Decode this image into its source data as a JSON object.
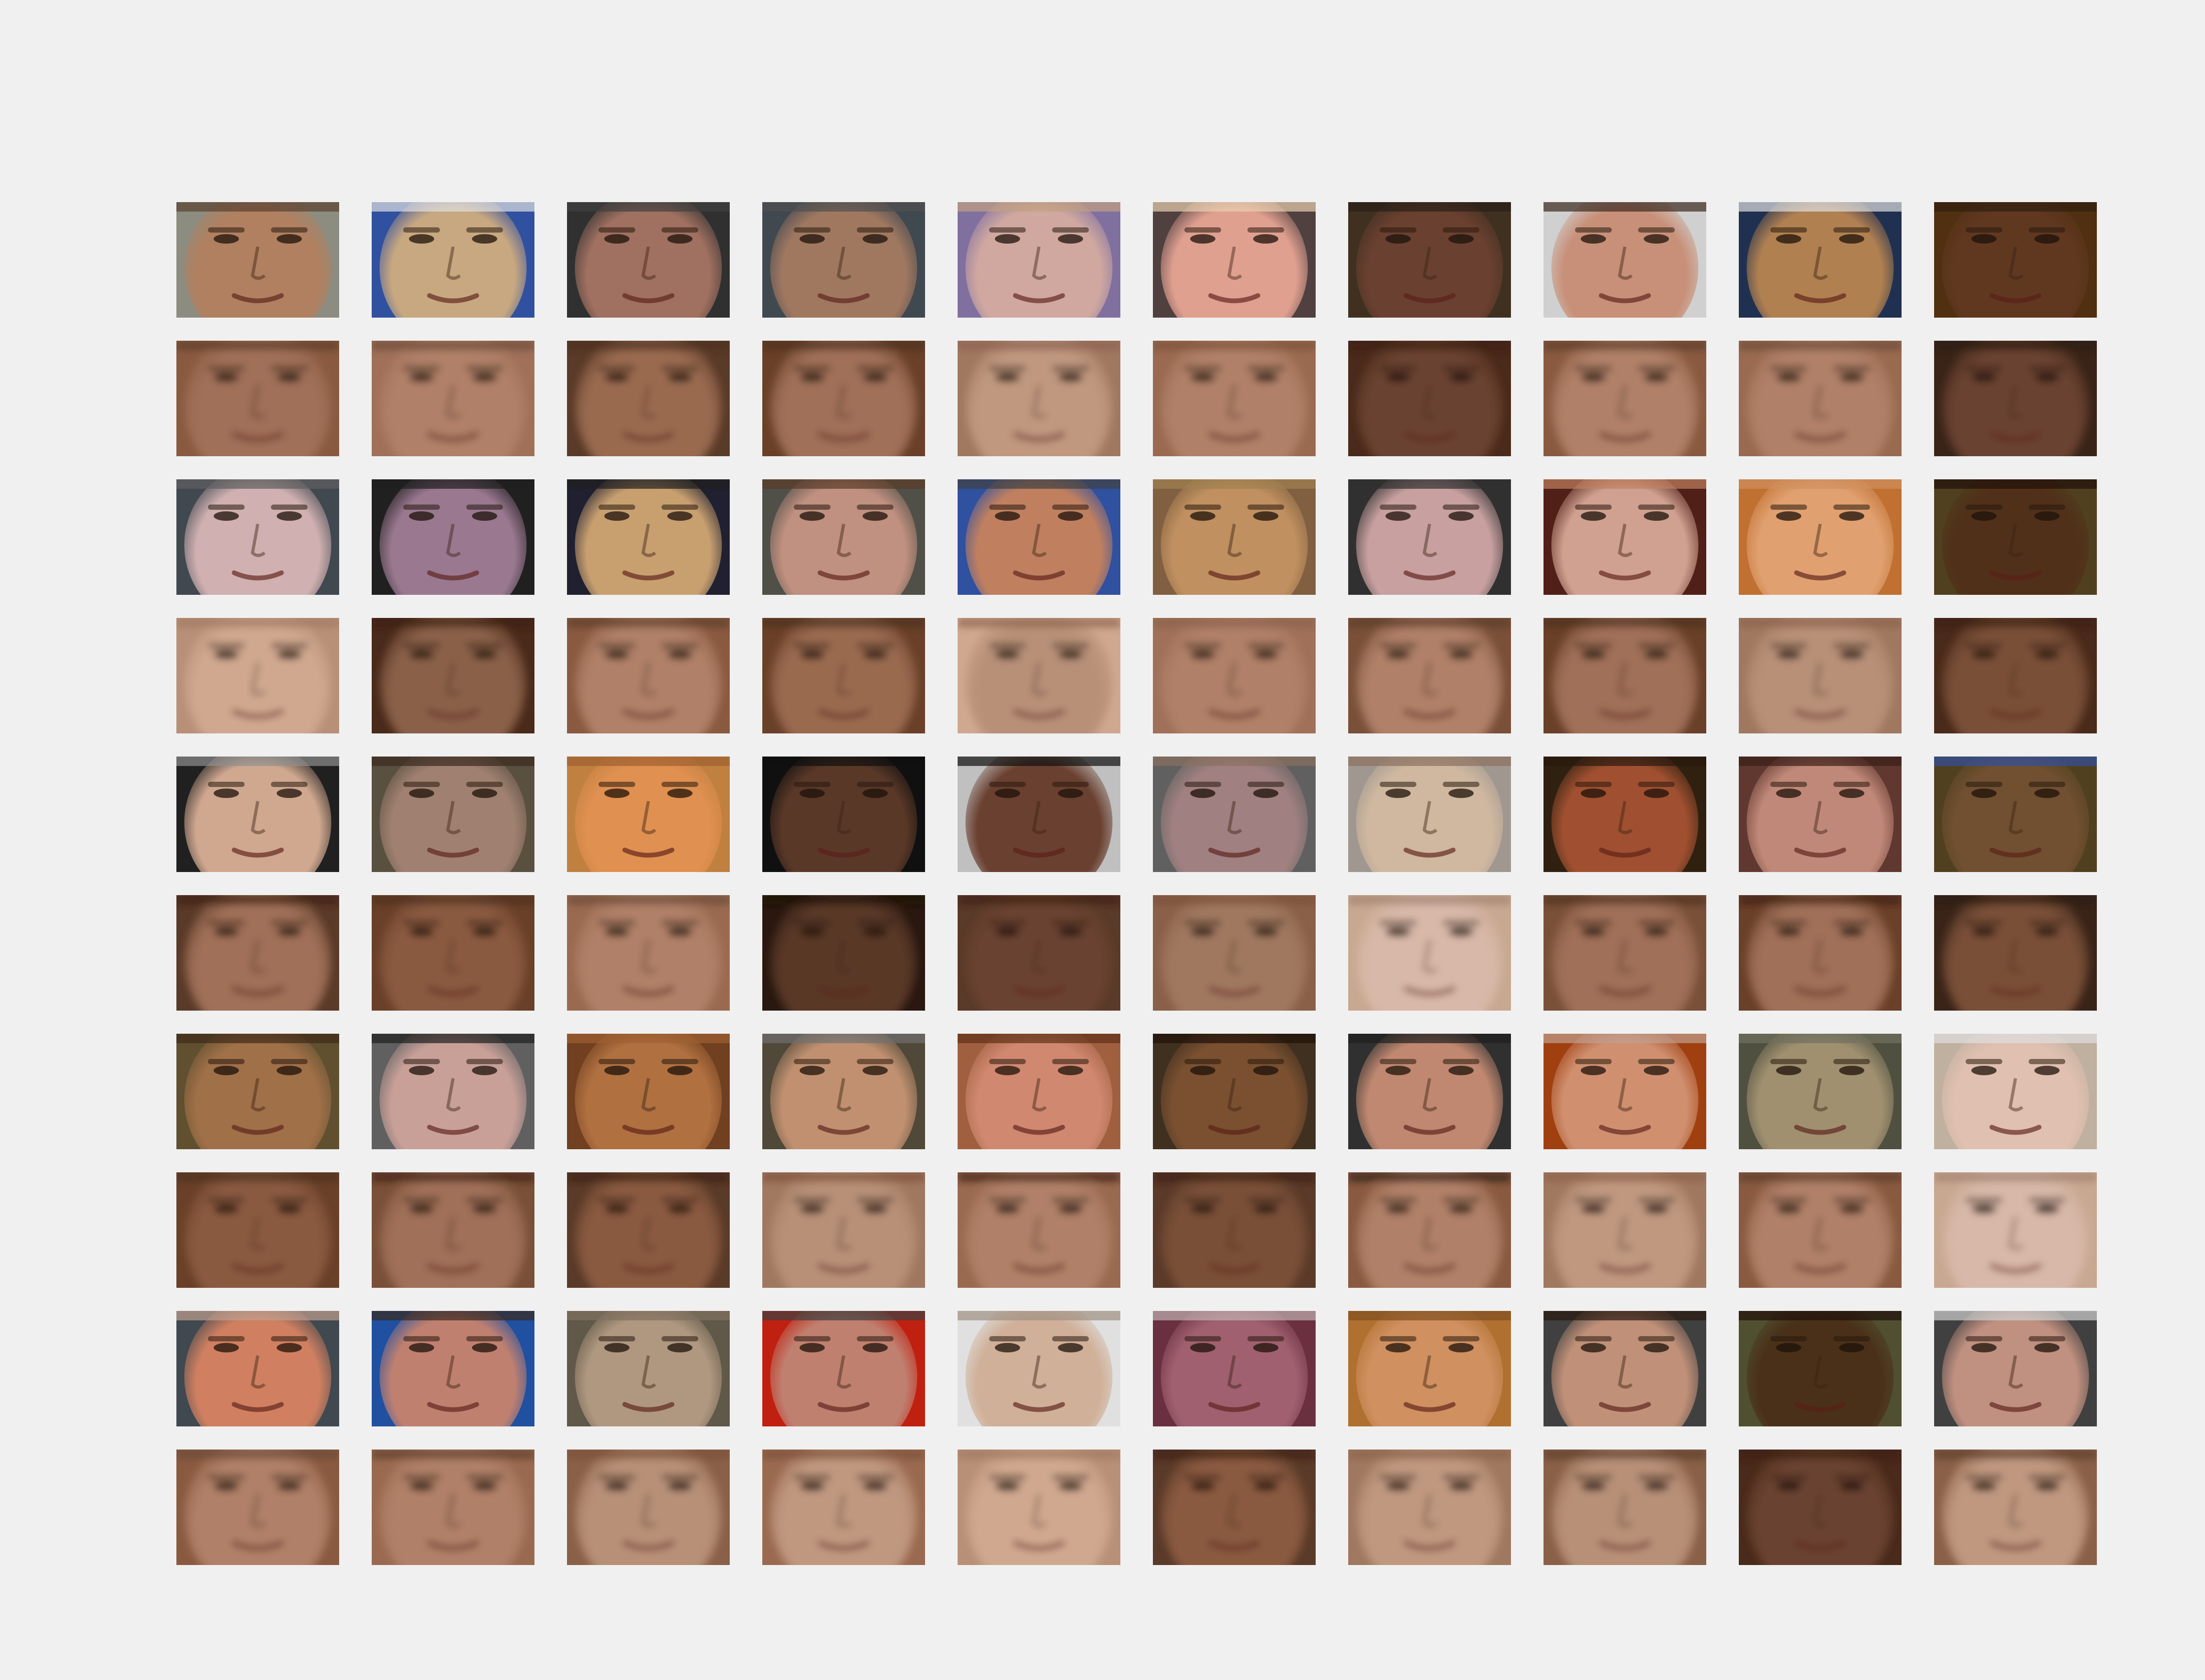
{
  "figure": {
    "description_free": true,
    "grid": {
      "rows": 10,
      "cols": 10
    },
    "row_kinds": [
      "original",
      "reconstruction",
      "original",
      "reconstruction",
      "original",
      "reconstruction",
      "original",
      "reconstruction",
      "original",
      "reconstruction"
    ],
    "tiles": [
      [
        {
          "skin": "#b08060",
          "bg": "#8c8c80",
          "hair": "#5a4030"
        },
        {
          "skin": "#c8a880",
          "bg": "#3050a0",
          "hair": "#e0e0e0"
        },
        {
          "skin": "#a07060",
          "bg": "#303030",
          "hair": "#404040"
        },
        {
          "skin": "#a07860",
          "bg": "#404850",
          "hair": "#505050"
        },
        {
          "skin": "#d0a8a0",
          "bg": "#8070a0",
          "hair": "#c0a080"
        },
        {
          "skin": "#e0a090",
          "bg": "#504040",
          "hair": "#e8d0b0"
        },
        {
          "skin": "#6a4030",
          "bg": "#403020",
          "hair": "#2a2018"
        },
        {
          "skin": "#c89078",
          "bg": "#d0d0d0",
          "hair": "#3a2a20"
        },
        {
          "skin": "#b08050",
          "bg": "#203050",
          "hair": "#e0e0e0"
        },
        {
          "skin": "#603820",
          "bg": "#503010",
          "hair": "#302010"
        }
      ],
      [
        {
          "skin": "#a07058",
          "bg": "#8a5a40",
          "hair": "#5a3a28"
        },
        {
          "skin": "#b08068",
          "bg": "#a07058",
          "hair": "#6a4a38"
        },
        {
          "skin": "#9a6a50",
          "bg": "#5a3a28",
          "hair": "#4a3020"
        },
        {
          "skin": "#a07058",
          "bg": "#6a4028",
          "hair": "#4a3020"
        },
        {
          "skin": "#c09880",
          "bg": "#a07860",
          "hair": "#8a6050"
        },
        {
          "skin": "#b08068",
          "bg": "#9a6a50",
          "hair": "#7a5038"
        },
        {
          "skin": "#6a4230",
          "bg": "#4a2a1a",
          "hair": "#3a2010"
        },
        {
          "skin": "#b08068",
          "bg": "#8a5a40",
          "hair": "#5a3a28"
        },
        {
          "skin": "#b08068",
          "bg": "#9a6a50",
          "hair": "#6a4a38"
        },
        {
          "skin": "#6a4230",
          "bg": "#3a2418",
          "hair": "#2a1a10"
        }
      ],
      [
        {
          "skin": "#d0b0b0",
          "bg": "#404850",
          "hair": "#606060"
        },
        {
          "skin": "#9a7890",
          "bg": "#202020",
          "hair": "#202020"
        },
        {
          "skin": "#c8a070",
          "bg": "#202030",
          "hair": "#202020"
        },
        {
          "skin": "#c09080",
          "bg": "#505048",
          "hair": "#5a3a28"
        },
        {
          "skin": "#c08060",
          "bg": "#3050a0",
          "hair": "#404040"
        },
        {
          "skin": "#c09060",
          "bg": "#806040",
          "hair": "#a08050"
        },
        {
          "skin": "#c8a0a0",
          "bg": "#303030",
          "hair": "#303030"
        },
        {
          "skin": "#d0a090",
          "bg": "#502018",
          "hair": "#c08060"
        },
        {
          "skin": "#e0a070",
          "bg": "#c07030",
          "hair": "#d09060"
        },
        {
          "skin": "#503018",
          "bg": "#504020",
          "hair": "#201008"
        }
      ],
      [
        {
          "skin": "#d0a890",
          "bg": "#b89078",
          "hair": "#a07860"
        },
        {
          "skin": "#8a6048",
          "bg": "#4a2a1a",
          "hair": "#3a2010"
        },
        {
          "skin": "#b08068",
          "bg": "#8a5a40",
          "hair": "#5a3a28"
        },
        {
          "skin": "#9a6a50",
          "bg": "#6a4028",
          "hair": "#4a3020"
        },
        {
          "skin": "#b89078",
          "bg": "#d0a890",
          "hair": "#8a6048"
        },
        {
          "skin": "#b08068",
          "bg": "#a07058",
          "hair": "#8a6048"
        },
        {
          "skin": "#b08068",
          "bg": "#7a5038",
          "hair": "#5a3a28"
        },
        {
          "skin": "#a07058",
          "bg": "#6a4028",
          "hair": "#4a3020"
        },
        {
          "skin": "#b89078",
          "bg": "#a07860",
          "hair": "#8a6048"
        },
        {
          "skin": "#7a5038",
          "bg": "#4a2a1a",
          "hair": "#3a2010"
        }
      ],
      [
        {
          "skin": "#d0a890",
          "bg": "#202020",
          "hair": "#909090"
        },
        {
          "skin": "#a08070",
          "bg": "#5a5040",
          "hair": "#3a2a20"
        },
        {
          "skin": "#e09050",
          "bg": "#c08040",
          "hair": "#a06030"
        },
        {
          "skin": "#5a3828",
          "bg": "#101010",
          "hair": "#101010"
        },
        {
          "skin": "#6a4030",
          "bg": "#c0c0c0",
          "hair": "#101010"
        },
        {
          "skin": "#a08080",
          "bg": "#606060",
          "hair": "#8a7060"
        },
        {
          "skin": "#d0b8a0",
          "bg": "#a09890",
          "hair": "#8a7060"
        },
        {
          "skin": "#a05030",
          "bg": "#302010",
          "hair": "#2a1a10"
        },
        {
          "skin": "#c08878",
          "bg": "#603830",
          "hair": "#3a2018"
        },
        {
          "skin": "#705030",
          "bg": "#504020",
          "hair": "#3050a0"
        }
      ],
      [
        {
          "skin": "#a07058",
          "bg": "#5a3a28",
          "hair": "#3a2010"
        },
        {
          "skin": "#8a5a40",
          "bg": "#6a4028",
          "hair": "#4a3020"
        },
        {
          "skin": "#b08068",
          "bg": "#9a6a50",
          "hair": "#6a4a38"
        },
        {
          "skin": "#5a3828",
          "bg": "#2a1810",
          "hair": "#1a1008"
        },
        {
          "skin": "#6a4230",
          "bg": "#5a3a28",
          "hair": "#3a2010"
        },
        {
          "skin": "#a07860",
          "bg": "#8a6048",
          "hair": "#7a5038"
        },
        {
          "skin": "#d8b8a8",
          "bg": "#c8a890",
          "hair": "#a08070"
        },
        {
          "skin": "#a07058",
          "bg": "#7a5038",
          "hair": "#4a3020"
        },
        {
          "skin": "#a07058",
          "bg": "#6a4028",
          "hair": "#3a2010"
        },
        {
          "skin": "#7a5038",
          "bg": "#3a2418",
          "hair": "#2a1a10"
        }
      ],
      [
        {
          "skin": "#a07048",
          "bg": "#605030",
          "hair": "#402a18"
        },
        {
          "skin": "#c8a098",
          "bg": "#606060",
          "hair": "#202020"
        },
        {
          "skin": "#b07040",
          "bg": "#704020",
          "hair": "#a06030"
        },
        {
          "skin": "#c09070",
          "bg": "#504838",
          "hair": "#707070"
        },
        {
          "skin": "#d08870",
          "bg": "#a06040",
          "hair": "#603018"
        },
        {
          "skin": "#7a5030",
          "bg": "#403020",
          "hair": "#201008"
        },
        {
          "skin": "#c08870",
          "bg": "#303030",
          "hair": "#202020"
        },
        {
          "skin": "#d09070",
          "bg": "#a04010",
          "hair": "#c0a090"
        },
        {
          "skin": "#a09070",
          "bg": "#505040",
          "hair": "#707060"
        },
        {
          "skin": "#e0c0b0",
          "bg": "#c0b0a0",
          "hair": "#e0e0e0"
        }
      ],
      [
        {
          "skin": "#8a5a40",
          "bg": "#6a4028",
          "hair": "#4a3020"
        },
        {
          "skin": "#a07058",
          "bg": "#7a5038",
          "hair": "#3a2010"
        },
        {
          "skin": "#8a5a40",
          "bg": "#5a3a28",
          "hair": "#3a2010"
        },
        {
          "skin": "#b89078",
          "bg": "#a07860",
          "hair": "#7a5038"
        },
        {
          "skin": "#b08068",
          "bg": "#9a6a50",
          "hair": "#3a2010"
        },
        {
          "skin": "#7a5038",
          "bg": "#5a3a28",
          "hair": "#3a2010"
        },
        {
          "skin": "#b08068",
          "bg": "#8a5a40",
          "hair": "#2a1a10"
        },
        {
          "skin": "#c09880",
          "bg": "#a07860",
          "hair": "#8a6048"
        },
        {
          "skin": "#b08068",
          "bg": "#8a5a40",
          "hair": "#5a3a28"
        },
        {
          "skin": "#d8b8a8",
          "bg": "#c8a890",
          "hair": "#a08070"
        }
      ],
      [
        {
          "skin": "#d08060",
          "bg": "#404850",
          "hair": "#c0a090"
        },
        {
          "skin": "#c08070",
          "bg": "#2050a0",
          "hair": "#3a2a20"
        },
        {
          "skin": "#b09880",
          "bg": "#605848",
          "hair": "#807060"
        },
        {
          "skin": "#c08070",
          "bg": "#c02010",
          "hair": "#404040"
        },
        {
          "skin": "#d0b098",
          "bg": "#e0e0e0",
          "hair": "#a09080"
        },
        {
          "skin": "#a06070",
          "bg": "#6a3040",
          "hair": "#c0b0b0"
        },
        {
          "skin": "#d09060",
          "bg": "#b07030",
          "hair": "#805020"
        },
        {
          "skin": "#c09078",
          "bg": "#404040",
          "hair": "#2a1a10"
        },
        {
          "skin": "#4a3018",
          "bg": "#505030",
          "hair": "#201008"
        },
        {
          "skin": "#c09080",
          "bg": "#404040",
          "hair": "#d0d0d0"
        }
      ],
      [
        {
          "skin": "#b08068",
          "bg": "#8a5a40",
          "hair": "#6a4a38"
        },
        {
          "skin": "#b08068",
          "bg": "#9a6a50",
          "hair": "#5a3a28"
        },
        {
          "skin": "#b89078",
          "bg": "#8a6048",
          "hair": "#7a5038"
        },
        {
          "skin": "#c09880",
          "bg": "#9a6a50",
          "hair": "#7a5038"
        },
        {
          "skin": "#d0a890",
          "bg": "#b89078",
          "hair": "#a07860"
        },
        {
          "skin": "#8a5a40",
          "bg": "#5a3a28",
          "hair": "#3a2010"
        },
        {
          "skin": "#c09880",
          "bg": "#a07860",
          "hair": "#8a6048"
        },
        {
          "skin": "#b89078",
          "bg": "#8a6048",
          "hair": "#5a3a28"
        },
        {
          "skin": "#6a4230",
          "bg": "#4a2a1a",
          "hair": "#3a2010"
        },
        {
          "skin": "#c09880",
          "bg": "#8a6048",
          "hair": "#5a3a28"
        }
      ]
    ]
  }
}
